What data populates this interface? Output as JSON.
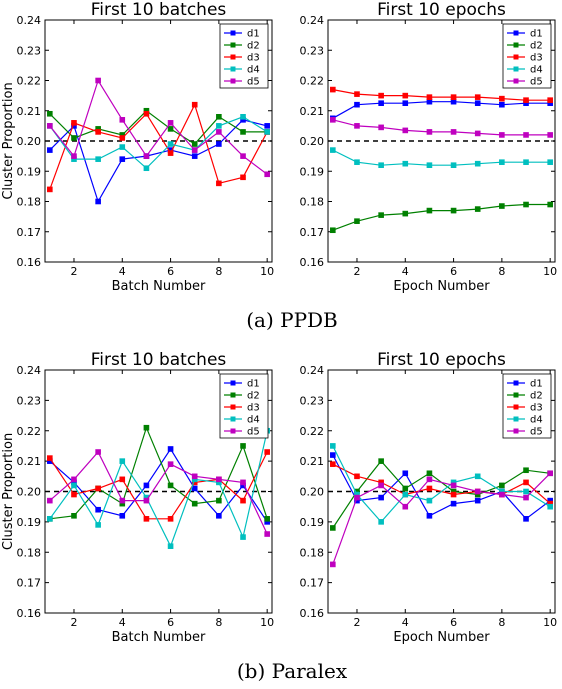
{
  "captions": [
    "(a) PPDB",
    "(b) Paralex"
  ],
  "chart_data": [
    {
      "type": "line",
      "title": "First 10 batches",
      "xlabel": "Batch Number",
      "ylabel": "Cluster Proportion",
      "xlim": [
        0.8,
        10.2
      ],
      "ylim": [
        0.16,
        0.24
      ],
      "xticks": [
        2,
        4,
        6,
        8,
        10
      ],
      "yticks": [
        0.16,
        0.17,
        0.18,
        0.19,
        0.2,
        0.21,
        0.22,
        0.23,
        0.24
      ],
      "reference_line": 0.2,
      "legend": "top-right",
      "x": [
        1,
        2,
        3,
        4,
        5,
        6,
        7,
        8,
        9,
        10
      ],
      "series": [
        {
          "name": "d1",
          "color": "#0000ff",
          "values": [
            0.197,
            0.205,
            0.18,
            0.194,
            0.195,
            0.197,
            0.195,
            0.199,
            0.207,
            0.205
          ]
        },
        {
          "name": "d2",
          "color": "#008000",
          "values": [
            0.209,
            0.201,
            0.204,
            0.202,
            0.21,
            0.204,
            0.199,
            0.208,
            0.203,
            0.203
          ]
        },
        {
          "name": "d3",
          "color": "#ff0000",
          "values": [
            0.184,
            0.206,
            0.203,
            0.201,
            0.209,
            0.196,
            0.212,
            0.186,
            0.188,
            0.203
          ]
        },
        {
          "name": "d4",
          "color": "#00bfbf",
          "values": [
            0.205,
            0.194,
            0.194,
            0.198,
            0.191,
            0.199,
            0.197,
            0.205,
            0.208,
            0.203
          ]
        },
        {
          "name": "d5",
          "color": "#bf00bf",
          "values": [
            0.205,
            0.195,
            0.22,
            0.207,
            0.195,
            0.206,
            0.197,
            0.203,
            0.195,
            0.189
          ]
        }
      ]
    },
    {
      "type": "line",
      "title": "First 10 epochs",
      "xlabel": "Epoch Number",
      "ylabel": "",
      "xlim": [
        0.8,
        10.2
      ],
      "ylim": [
        0.16,
        0.24
      ],
      "xticks": [
        2,
        4,
        6,
        8,
        10
      ],
      "yticks": [
        0.16,
        0.17,
        0.18,
        0.19,
        0.2,
        0.21,
        0.22,
        0.23,
        0.24
      ],
      "reference_line": 0.2,
      "legend": "top-right",
      "x": [
        1,
        2,
        3,
        4,
        5,
        6,
        7,
        8,
        9,
        10
      ],
      "series": [
        {
          "name": "d1",
          "color": "#0000ff",
          "values": [
            0.2075,
            0.212,
            0.2125,
            0.2125,
            0.213,
            0.213,
            0.2125,
            0.212,
            0.2125,
            0.2125
          ]
        },
        {
          "name": "d2",
          "color": "#008000",
          "values": [
            0.1705,
            0.1735,
            0.1755,
            0.176,
            0.177,
            0.177,
            0.1775,
            0.1785,
            0.179,
            0.179
          ]
        },
        {
          "name": "d3",
          "color": "#ff0000",
          "values": [
            0.217,
            0.2155,
            0.215,
            0.215,
            0.2145,
            0.2145,
            0.2145,
            0.214,
            0.2135,
            0.2135
          ]
        },
        {
          "name": "d4",
          "color": "#00bfbf",
          "values": [
            0.197,
            0.193,
            0.192,
            0.1925,
            0.192,
            0.192,
            0.1925,
            0.193,
            0.193,
            0.193
          ]
        },
        {
          "name": "d5",
          "color": "#bf00bf",
          "values": [
            0.207,
            0.205,
            0.2045,
            0.2035,
            0.203,
            0.203,
            0.2025,
            0.202,
            0.202,
            0.202
          ]
        }
      ]
    },
    {
      "type": "line",
      "title": "First 10 batches",
      "xlabel": "Batch Number",
      "ylabel": "Cluster Proportion",
      "xlim": [
        0.8,
        10.2
      ],
      "ylim": [
        0.16,
        0.24
      ],
      "xticks": [
        2,
        4,
        6,
        8,
        10
      ],
      "yticks": [
        0.16,
        0.17,
        0.18,
        0.19,
        0.2,
        0.21,
        0.22,
        0.23,
        0.24
      ],
      "reference_line": 0.2,
      "legend": "top-right",
      "x": [
        1,
        2,
        3,
        4,
        5,
        6,
        7,
        8,
        9,
        10
      ],
      "series": [
        {
          "name": "d1",
          "color": "#0000ff",
          "values": [
            0.21,
            0.203,
            0.194,
            0.192,
            0.202,
            0.214,
            0.201,
            0.192,
            0.202,
            0.19
          ]
        },
        {
          "name": "d2",
          "color": "#008000",
          "values": [
            0.191,
            0.192,
            0.201,
            0.196,
            0.221,
            0.202,
            0.196,
            0.197,
            0.215,
            0.191
          ]
        },
        {
          "name": "d3",
          "color": "#ff0000",
          "values": [
            0.211,
            0.199,
            0.201,
            0.204,
            0.191,
            0.191,
            0.203,
            0.204,
            0.197,
            0.213
          ]
        },
        {
          "name": "d4",
          "color": "#00bfbf",
          "values": [
            0.191,
            0.202,
            0.189,
            0.21,
            0.198,
            0.182,
            0.204,
            0.203,
            0.185,
            0.22
          ]
        },
        {
          "name": "d5",
          "color": "#bf00bf",
          "values": [
            0.197,
            0.204,
            0.213,
            0.197,
            0.197,
            0.209,
            0.205,
            0.204,
            0.203,
            0.186
          ]
        }
      ]
    },
    {
      "type": "line",
      "title": "First 10 epochs",
      "xlabel": "Epoch Number",
      "ylabel": "",
      "xlim": [
        0.8,
        10.2
      ],
      "ylim": [
        0.16,
        0.24
      ],
      "xticks": [
        2,
        4,
        6,
        8,
        10
      ],
      "yticks": [
        0.16,
        0.17,
        0.18,
        0.19,
        0.2,
        0.21,
        0.22,
        0.23,
        0.24
      ],
      "reference_line": 0.2,
      "legend": "top-right",
      "x": [
        1,
        2,
        3,
        4,
        5,
        6,
        7,
        8,
        9,
        10
      ],
      "series": [
        {
          "name": "d1",
          "color": "#0000ff",
          "values": [
            0.212,
            0.197,
            0.198,
            0.206,
            0.192,
            0.196,
            0.197,
            0.2,
            0.191,
            0.197
          ]
        },
        {
          "name": "d2",
          "color": "#008000",
          "values": [
            0.188,
            0.2,
            0.21,
            0.201,
            0.206,
            0.2,
            0.199,
            0.202,
            0.207,
            0.206
          ]
        },
        {
          "name": "d3",
          "color": "#ff0000",
          "values": [
            0.209,
            0.205,
            0.203,
            0.199,
            0.201,
            0.199,
            0.2,
            0.199,
            0.203,
            0.196
          ]
        },
        {
          "name": "d4",
          "color": "#00bfbf",
          "values": [
            0.215,
            0.199,
            0.19,
            0.199,
            0.197,
            0.203,
            0.205,
            0.2,
            0.2,
            0.195
          ]
        },
        {
          "name": "d5",
          "color": "#bf00bf",
          "values": [
            0.176,
            0.198,
            0.202,
            0.195,
            0.204,
            0.202,
            0.2,
            0.199,
            0.198,
            0.206
          ]
        }
      ]
    }
  ]
}
